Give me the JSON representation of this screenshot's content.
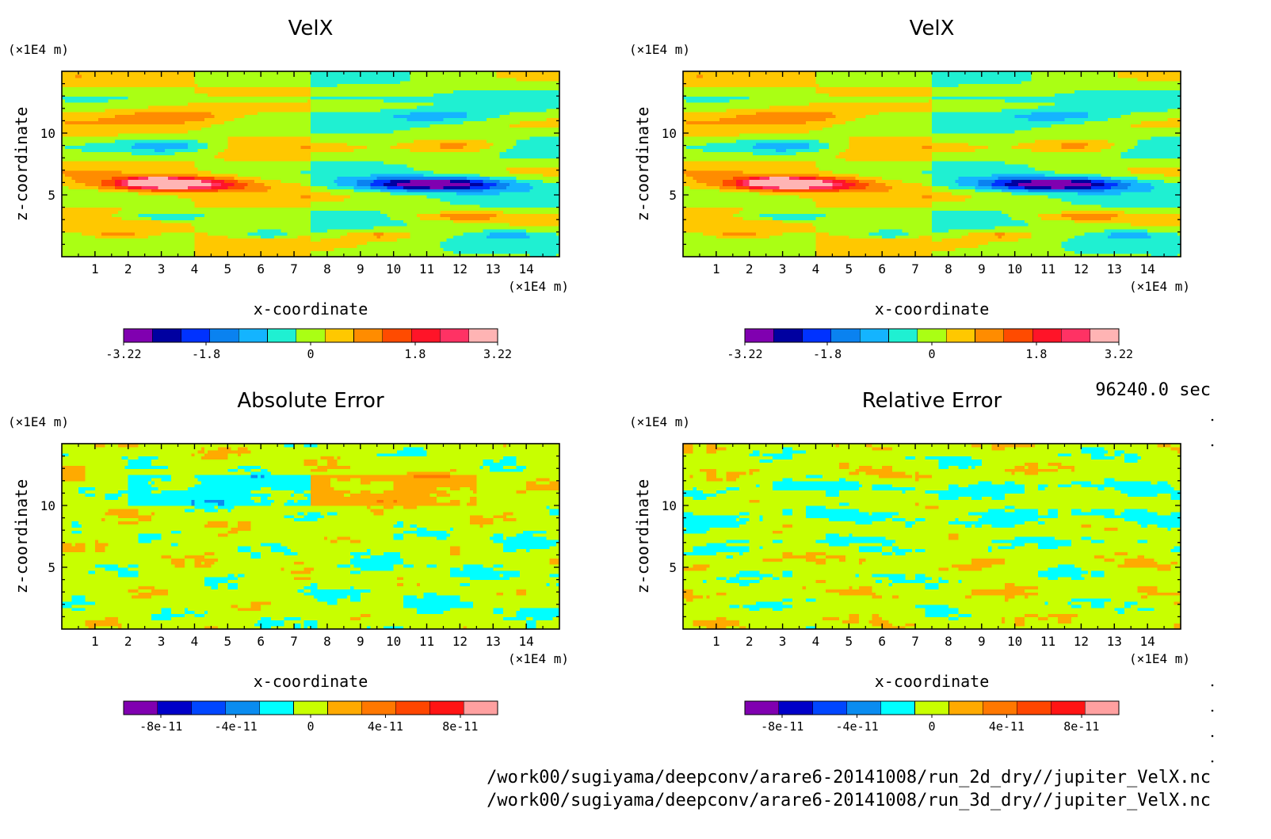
{
  "page": {
    "time_label": "96240.0 sec",
    "file_lines": [
      "/work00/sugiyama/deepconv/arare6-20141008/run_2d_dry//jupiter_VelX.nc",
      "/work00/sugiyama/deepconv/arare6-20141008/run_3d_dry//jupiter_VelX.nc"
    ]
  },
  "chart_data": [
    {
      "type": "heatmap",
      "title": "VelX",
      "xlabel": "x-coordinate",
      "ylabel": "z-coordinate",
      "x_unit": "(×1E4 m)",
      "y_unit": "(×1E4 m)",
      "xlim": [
        0,
        15
      ],
      "ylim": [
        0,
        15
      ],
      "x_ticks": [
        1,
        2,
        3,
        4,
        5,
        6,
        7,
        8,
        9,
        10,
        11,
        12,
        13,
        14
      ],
      "y_ticks": [
        5,
        10
      ],
      "colorbar": {
        "min": -3.22,
        "max": 3.22,
        "tick_labels": [
          "-3.22",
          "-1.8",
          "0",
          "1.8",
          "3.22"
        ],
        "tick_values": [
          -3.22,
          -1.8,
          0,
          1.8,
          3.22
        ],
        "colors": [
          "#8000b0",
          "#0000a0",
          "#0032ff",
          "#0a82f0",
          "#14b4ff",
          "#1ff0d2",
          "#aaff14",
          "#ffc800",
          "#ff8c00",
          "#ff4b00",
          "#ff1428",
          "#ff3264",
          "#ffb4b4"
        ]
      },
      "field_model": "velx"
    },
    {
      "type": "heatmap",
      "title": "VelX",
      "xlabel": "x-coordinate",
      "ylabel": "z-coordinate",
      "x_unit": "(×1E4 m)",
      "y_unit": "(×1E4 m)",
      "xlim": [
        0,
        15
      ],
      "ylim": [
        0,
        15
      ],
      "x_ticks": [
        1,
        2,
        3,
        4,
        5,
        6,
        7,
        8,
        9,
        10,
        11,
        12,
        13,
        14
      ],
      "y_ticks": [
        5,
        10
      ],
      "colorbar": {
        "min": -3.22,
        "max": 3.22,
        "tick_labels": [
          "-3.22",
          "-1.8",
          "0",
          "1.8",
          "3.22"
        ],
        "tick_values": [
          -3.22,
          -1.8,
          0,
          1.8,
          3.22
        ],
        "colors": [
          "#8000b0",
          "#0000a0",
          "#0032ff",
          "#0a82f0",
          "#14b4ff",
          "#1ff0d2",
          "#aaff14",
          "#ffc800",
          "#ff8c00",
          "#ff4b00",
          "#ff1428",
          "#ff3264",
          "#ffb4b4"
        ]
      },
      "field_model": "velx"
    },
    {
      "type": "heatmap",
      "title": "Absolute Error",
      "xlabel": "x-coordinate",
      "ylabel": "z-coordinate",
      "x_unit": "(×1E4 m)",
      "y_unit": "(×1E4 m)",
      "xlim": [
        0,
        15
      ],
      "ylim": [
        0,
        15
      ],
      "x_ticks": [
        1,
        2,
        3,
        4,
        5,
        6,
        7,
        8,
        9,
        10,
        11,
        12,
        13,
        14
      ],
      "y_ticks": [
        5,
        10
      ],
      "colorbar": {
        "min": -1e-10,
        "max": 1e-10,
        "tick_labels": [
          "-8e-11",
          "-4e-11",
          "0",
          "4e-11",
          "8e-11"
        ],
        "tick_values": [
          -8e-11,
          -4e-11,
          0,
          4e-11,
          8e-11
        ],
        "colors": [
          "#8000b0",
          "#0000c8",
          "#0046ff",
          "#0a8cf0",
          "#00ffff",
          "#c8ff00",
          "#ffaa00",
          "#ff7800",
          "#ff4600",
          "#ff1414",
          "#ffa0a0"
        ]
      },
      "field_model": "abs_error"
    },
    {
      "type": "heatmap",
      "title": "Relative Error",
      "xlabel": "x-coordinate",
      "ylabel": "z-coordinate",
      "x_unit": "(×1E4 m)",
      "y_unit": "(×1E4 m)",
      "xlim": [
        0,
        15
      ],
      "ylim": [
        0,
        15
      ],
      "x_ticks": [
        1,
        2,
        3,
        4,
        5,
        6,
        7,
        8,
        9,
        10,
        11,
        12,
        13,
        14
      ],
      "y_ticks": [
        5,
        10
      ],
      "colorbar": {
        "min": -1e-10,
        "max": 1e-10,
        "tick_labels": [
          "-8e-11",
          "-4e-11",
          "0",
          "4e-11",
          "8e-11"
        ],
        "tick_values": [
          -8e-11,
          -4e-11,
          0,
          4e-11,
          8e-11
        ],
        "colors": [
          "#8000b0",
          "#0000c8",
          "#0046ff",
          "#0a8cf0",
          "#00ffff",
          "#c8ff00",
          "#ffaa00",
          "#ff7800",
          "#ff4600",
          "#ff1414",
          "#ffa0a0"
        ]
      },
      "field_model": "rel_error"
    }
  ]
}
